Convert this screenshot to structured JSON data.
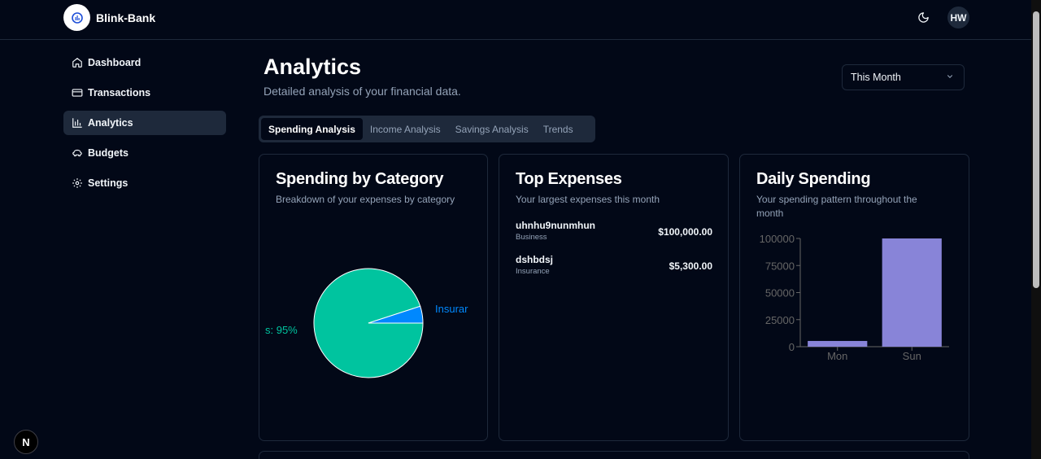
{
  "app": {
    "name": "Blink-Bank"
  },
  "header": {
    "avatar_initials": "HW",
    "theme_icon": "moon-icon"
  },
  "sidebar": {
    "items": [
      {
        "label": "Dashboard",
        "icon": "home-icon"
      },
      {
        "label": "Transactions",
        "icon": "credit-card-icon"
      },
      {
        "label": "Analytics",
        "icon": "bar-chart-icon",
        "active": true
      },
      {
        "label": "Budgets",
        "icon": "piggy-bank-icon"
      },
      {
        "label": "Settings",
        "icon": "gear-icon"
      }
    ]
  },
  "page": {
    "title": "Analytics",
    "subtitle": "Detailed analysis of your financial data.",
    "period": "This Month"
  },
  "tabs": [
    {
      "label": "Spending Analysis",
      "active": true
    },
    {
      "label": "Income Analysis"
    },
    {
      "label": "Savings Analysis"
    },
    {
      "label": "Trends"
    }
  ],
  "cards": {
    "category": {
      "title": "Spending by Category",
      "desc": "Breakdown of your expenses by category"
    },
    "top": {
      "title": "Top Expenses",
      "desc": "Your largest expenses this month",
      "items": [
        {
          "name": "uhnhu9nunmhun",
          "category": "Business",
          "amount": "$100,000.00"
        },
        {
          "name": "dshbdsj",
          "category": "Insurance",
          "amount": "$5,300.00"
        }
      ]
    },
    "daily": {
      "title": "Daily Spending",
      "desc": "Your spending pattern throughout the month"
    }
  },
  "chart_data": [
    {
      "type": "pie",
      "slices": [
        {
          "label": "s: 95%",
          "value": 95,
          "color": "#00c49f"
        },
        {
          "label": "Insurar",
          "value": 5,
          "color": "#0088fe"
        }
      ]
    },
    {
      "type": "bar",
      "categories": [
        "Mon",
        "Sun"
      ],
      "values": [
        5300,
        100000
      ],
      "ylim": [
        0,
        100000
      ],
      "yticks": [
        "0",
        "25000",
        "50000",
        "75000",
        "100000"
      ],
      "color": "#8884d8"
    }
  ],
  "badge": {
    "label": "N"
  }
}
